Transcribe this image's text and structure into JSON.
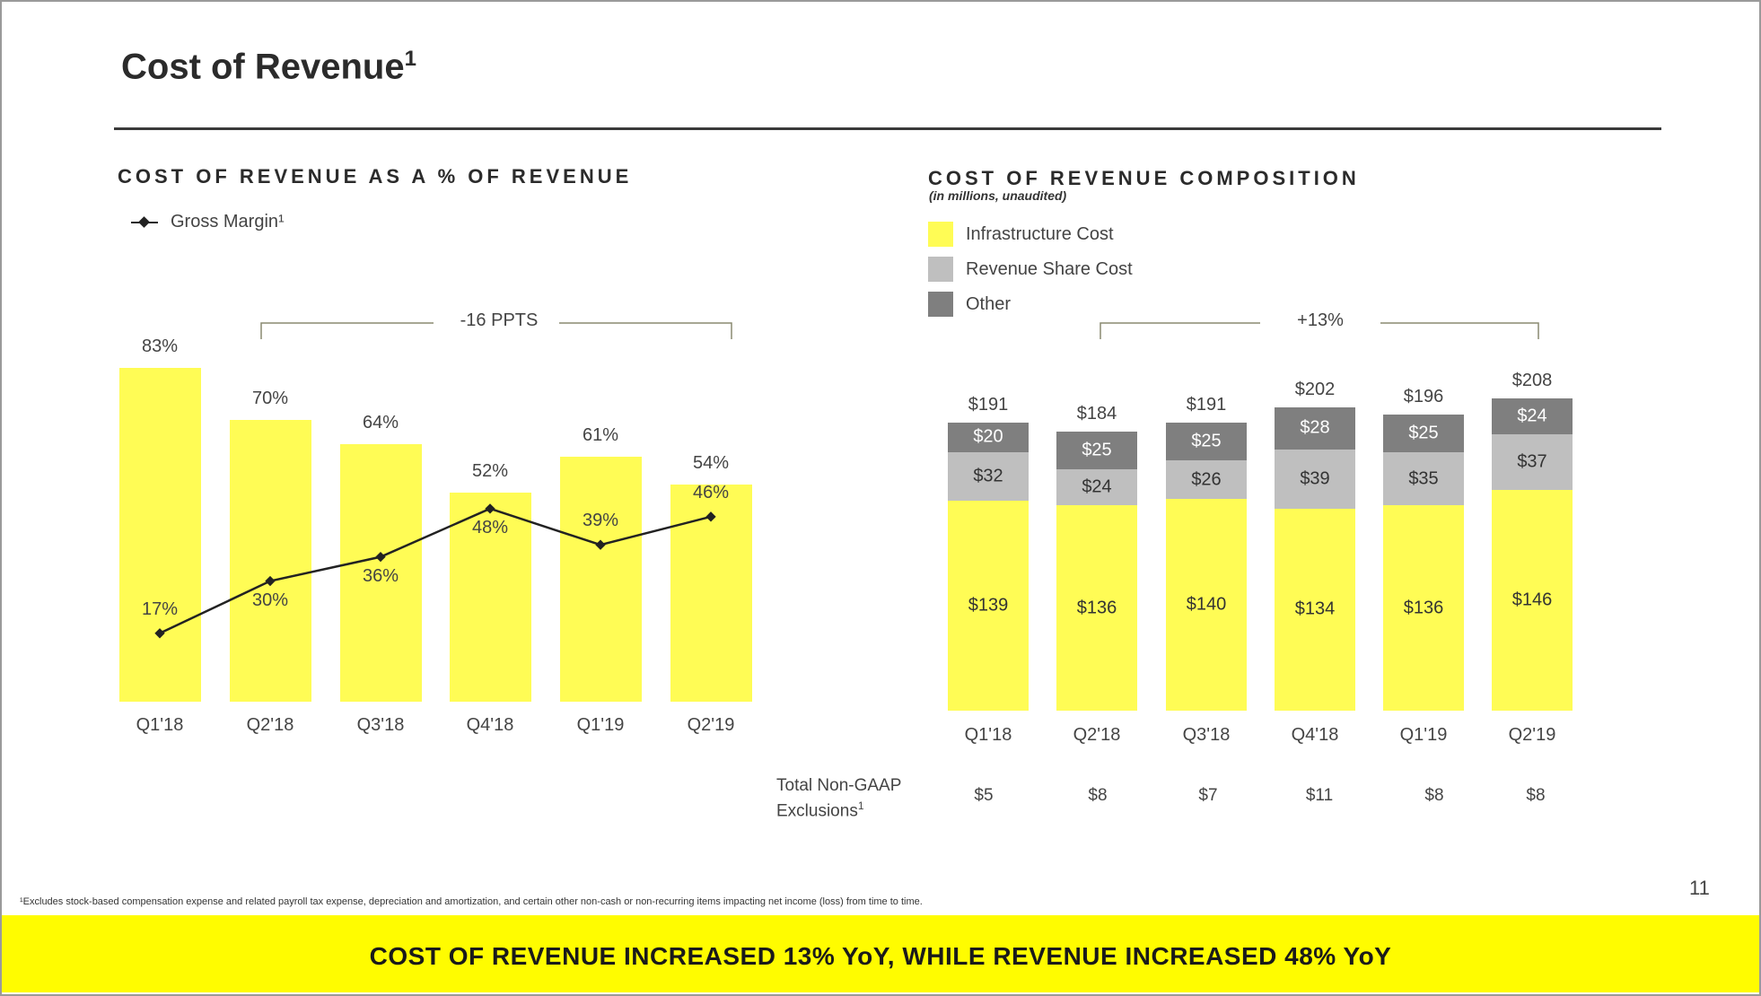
{
  "page": {
    "title": "Cost of Revenue",
    "title_sup": "1",
    "page_number": "11",
    "footnote": "¹Excludes stock-based compensation expense and related payroll tax expense, depreciation and amortization, and certain other non-cash or non-recurring items impacting net income (loss) from time to time.",
    "banner": "COST OF REVENUE INCREASED 13% YoY, WHILE REVENUE INCREASED 48% YoY",
    "colors": {
      "yellow": "#fffc55",
      "banner_yellow": "#fffc00",
      "light_gray": "#bfbfbf",
      "dark_gray": "#7f7f7f",
      "line": "#222222"
    }
  },
  "left": {
    "section_title": "COST OF REVENUE AS A % OF REVENUE",
    "legend_label": "Gross Margin¹",
    "bracket_label": "-16 PPTS"
  },
  "right": {
    "section_title": "COST OF REVENUE COMPOSITION",
    "subnote": "(in millions, unaudited)",
    "legend": [
      "Infrastructure Cost",
      "Revenue Share Cost",
      "Other"
    ],
    "bracket_label": "+13%",
    "exclusions_label_line1": "Total Non-GAAP",
    "exclusions_label_line2": "Exclusions",
    "exclusions_sup": "1",
    "exclusions": [
      "$5",
      "$8",
      "$7",
      "$11",
      "$8",
      "$8"
    ]
  },
  "chart_data": [
    {
      "type": "bar",
      "title": "COST OF REVENUE AS A % OF REVENUE",
      "categories": [
        "Q1'18",
        "Q2'18",
        "Q3'18",
        "Q4'18",
        "Q1'19",
        "Q2'19"
      ],
      "series": [
        {
          "type": "bar",
          "values": [
            83,
            70,
            64,
            52,
            61,
            54
          ],
          "labels": [
            "83%",
            "70%",
            "64%",
            "52%",
            "61%",
            "54%"
          ]
        },
        {
          "type": "line",
          "name": "Gross Margin¹",
          "values": [
            17,
            30,
            36,
            48,
            39,
            46
          ],
          "labels": [
            "17%",
            "30%",
            "36%",
            "48%",
            "39%",
            "46%"
          ]
        }
      ],
      "ylim": [
        0,
        83
      ]
    },
    {
      "type": "bar",
      "stacked": true,
      "title": "COST OF REVENUE COMPOSITION",
      "categories": [
        "Q1'18",
        "Q2'18",
        "Q3'18",
        "Q4'18",
        "Q1'19",
        "Q2'19"
      ],
      "series": [
        {
          "name": "Infrastructure Cost",
          "values": [
            139,
            136,
            140,
            134,
            136,
            146
          ],
          "labels": [
            "$139",
            "$136",
            "$140",
            "$134",
            "$136",
            "$146"
          ]
        },
        {
          "name": "Revenue Share Cost",
          "values": [
            32,
            24,
            26,
            39,
            35,
            37
          ],
          "labels": [
            "$32",
            "$24",
            "$26",
            "$39",
            "$35",
            "$37"
          ]
        },
        {
          "name": "Other",
          "values": [
            20,
            25,
            25,
            28,
            25,
            24
          ],
          "labels": [
            "$20",
            "$25",
            "$25",
            "$28",
            "$25",
            "$24"
          ]
        }
      ],
      "totals": [
        191,
        184,
        191,
        202,
        196,
        208
      ],
      "total_labels": [
        "$191",
        "$184",
        "$191",
        "$202",
        "$196",
        "$208"
      ],
      "ylim": [
        0,
        208
      ]
    }
  ]
}
